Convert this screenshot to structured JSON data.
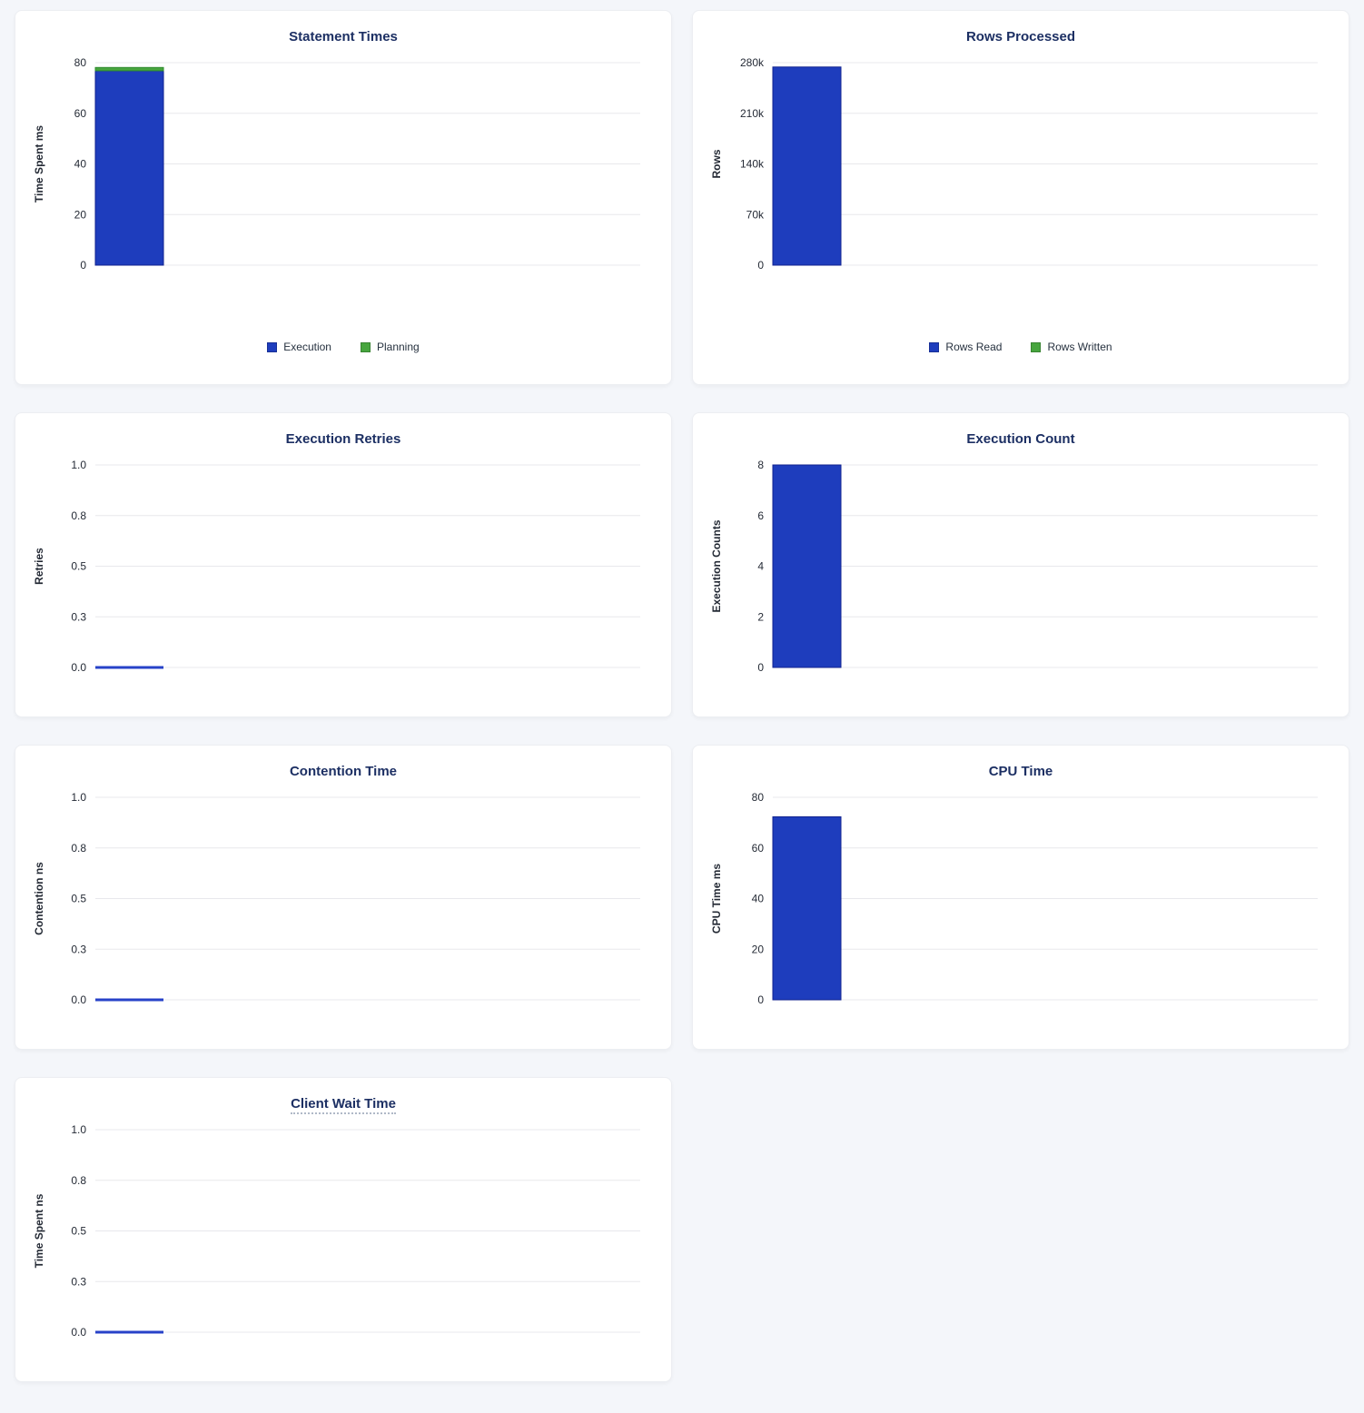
{
  "style": {
    "page_bg": "#f4f6fa",
    "card_bg": "#ffffff",
    "card_border": "#eceef2",
    "title_color": "#1c2f63",
    "tick_color": "#242a35",
    "axis_label_color": "#242a35",
    "grid_color": "#e8e8ec",
    "bar_blue": "#1e3dbd",
    "bar_blue_border": "#10228f",
    "bar_green": "#47a53e",
    "bar_green_border": "#2f8b2f",
    "zero_line_color": "#2742c8",
    "tooltip_underline": "#b0b9c7"
  },
  "chart_data": [
    {
      "id": "statement-times",
      "title": "Statement Times",
      "type": "bar",
      "ylabel": "Time Spent ms",
      "ylim": [
        0,
        80
      ],
      "yticks": [
        "0",
        "20",
        "40",
        "60",
        "80"
      ],
      "grid": true,
      "legend_position": "bottom",
      "series": [
        {
          "name": "Execution",
          "value": 76.8,
          "color": "#1e3dbd",
          "border": "#10228f"
        },
        {
          "name": "Planning",
          "value": 1.3,
          "color": "#47a53e",
          "border": "#2f8b2f"
        }
      ],
      "legend": [
        {
          "label": "Execution",
          "color": "#1e3dbd"
        },
        {
          "label": "Planning",
          "color": "#47a53e"
        }
      ]
    },
    {
      "id": "rows-processed",
      "title": "Rows Processed",
      "type": "bar",
      "ylabel": "Rows",
      "ylim": [
        0,
        280000
      ],
      "yticks": [
        "0",
        "70k",
        "140k",
        "210k",
        "280k"
      ],
      "grid": true,
      "legend_position": "bottom",
      "series": [
        {
          "name": "Rows Read",
          "value": 274000,
          "color": "#1e3dbd",
          "border": "#10228f"
        },
        {
          "name": "Rows Written",
          "value": 0,
          "color": "#47a53e",
          "border": "#2f8b2f"
        }
      ],
      "legend": [
        {
          "label": "Rows Read",
          "color": "#1e3dbd"
        },
        {
          "label": "Rows Written",
          "color": "#47a53e"
        }
      ]
    },
    {
      "id": "execution-retries",
      "title": "Execution Retries",
      "type": "line",
      "ylabel": "Retries",
      "ylim": [
        0,
        1
      ],
      "yticks": [
        "0.0",
        "0.3",
        "0.5",
        "0.8",
        "1.0"
      ],
      "grid": true,
      "values": [
        0
      ],
      "line_color": "#2742c8"
    },
    {
      "id": "execution-count",
      "title": "Execution Count",
      "type": "bar",
      "ylabel": "Execution Counts",
      "ylim": [
        0,
        8
      ],
      "yticks": [
        "0",
        "2",
        "4",
        "6",
        "8"
      ],
      "grid": true,
      "series": [
        {
          "value": 8,
          "color": "#1e3dbd",
          "border": "#10228f"
        }
      ]
    },
    {
      "id": "contention-time",
      "title": "Contention Time",
      "type": "line",
      "ylabel": "Contention ns",
      "ylim": [
        0,
        1
      ],
      "yticks": [
        "0.0",
        "0.3",
        "0.5",
        "0.8",
        "1.0"
      ],
      "grid": true,
      "values": [
        0
      ],
      "line_color": "#2742c8"
    },
    {
      "id": "cpu-time",
      "title": "CPU Time",
      "type": "bar",
      "ylabel": "CPU Time ms",
      "ylim": [
        0,
        80
      ],
      "yticks": [
        "0",
        "20",
        "40",
        "60",
        "80"
      ],
      "grid": true,
      "series": [
        {
          "value": 72.3,
          "color": "#1e3dbd",
          "border": "#10228f"
        }
      ]
    },
    {
      "id": "client-wait-time",
      "title": "Client Wait Time",
      "type": "line",
      "ylabel": "Time Spent ns",
      "ylim": [
        0,
        1
      ],
      "yticks": [
        "0.0",
        "0.3",
        "0.5",
        "0.8",
        "1.0"
      ],
      "grid": true,
      "values": [
        0
      ],
      "line_color": "#2742c8",
      "title_underline": true
    }
  ]
}
